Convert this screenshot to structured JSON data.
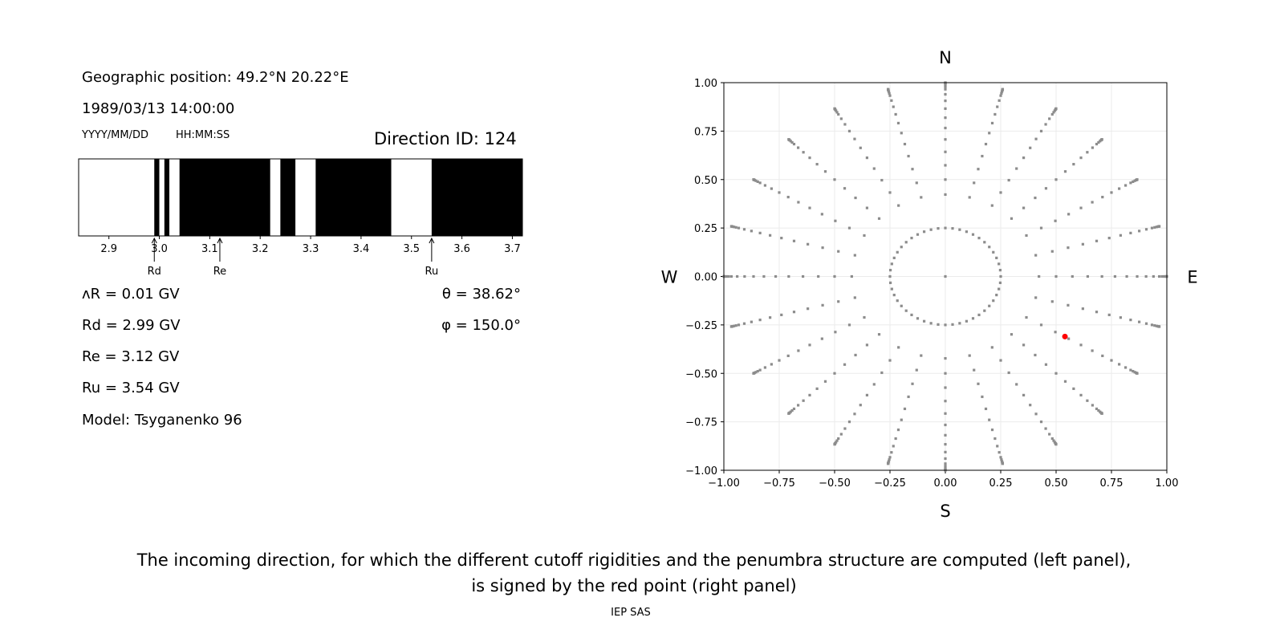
{
  "info": {
    "position": "Geographic position: 49.2°N 20.22°E",
    "datetime": "1989/03/13 14:00:00",
    "date_format": "YYYY/MM/DD",
    "time_format": "HH:MM:SS",
    "direction": "Direction ID: 124",
    "delta_r": "ᴧR = 0.01 GV",
    "rd": "Rd = 2.99 GV",
    "re": "Re = 3.12 GV",
    "ru": "Ru = 3.54 GV",
    "model": "Model: Tsyganenko 96",
    "theta": "θ = 38.62°",
    "phi": "φ = 150.0°"
  },
  "caption": {
    "line1": "The incoming direction, for which the different cutoff rigidities and the penumbra structure are computed (left panel),",
    "line2": "is signed by the red point (right panel)",
    "credit": "IEP SAS"
  },
  "chart_data": [
    {
      "type": "bar",
      "name": "penumbra",
      "xlim": [
        2.84,
        3.72
      ],
      "xticks": [
        "2.9",
        "3.0",
        "3.1",
        "3.2",
        "3.3",
        "3.4",
        "3.5",
        "3.6",
        "3.7"
      ],
      "bands": [
        {
          "from": 2.84,
          "to": 2.99,
          "allowed": true
        },
        {
          "from": 2.99,
          "to": 3.0,
          "allowed": false
        },
        {
          "from": 3.0,
          "to": 3.01,
          "allowed": true
        },
        {
          "from": 3.01,
          "to": 3.02,
          "allowed": false
        },
        {
          "from": 3.02,
          "to": 3.04,
          "allowed": true
        },
        {
          "from": 3.04,
          "to": 3.22,
          "allowed": false
        },
        {
          "from": 3.22,
          "to": 3.24,
          "allowed": true
        },
        {
          "from": 3.24,
          "to": 3.27,
          "allowed": false
        },
        {
          "from": 3.27,
          "to": 3.31,
          "allowed": true
        },
        {
          "from": 3.31,
          "to": 3.46,
          "allowed": false
        },
        {
          "from": 3.46,
          "to": 3.54,
          "allowed": true
        },
        {
          "from": 3.54,
          "to": 3.72,
          "allowed": false
        }
      ],
      "markers": [
        {
          "label": "Rd",
          "value": 2.99
        },
        {
          "label": "Re",
          "value": 3.12
        },
        {
          "label": "Ru",
          "value": 3.54
        }
      ],
      "colors": {
        "allowed": "#ffffff",
        "forbidden": "#000000"
      }
    },
    {
      "type": "scatter",
      "name": "directions",
      "xlim": [
        -1,
        1
      ],
      "ylim": [
        -1,
        1
      ],
      "grid": true,
      "ticks": [
        "−1.00",
        "−0.75",
        "−0.50",
        "−0.25",
        "0.00",
        "0.25",
        "0.50",
        "0.75",
        "1.00"
      ],
      "compass": {
        "n": "N",
        "s": "S",
        "e": "E",
        "w": "W"
      },
      "zenith_angles_deg": [
        25,
        30,
        35,
        40,
        45,
        50,
        55,
        60,
        65,
        70,
        75,
        78,
        81,
        84,
        86,
        88,
        90
      ],
      "azimuth_step_deg": 15,
      "inner_ring_radius": 0.25,
      "inner_ring_step_deg": 7.5,
      "selected": {
        "x": 0.54,
        "y": -0.31
      },
      "colors": {
        "points": "#8c8c8c",
        "selected": "#ff0000"
      }
    }
  ]
}
